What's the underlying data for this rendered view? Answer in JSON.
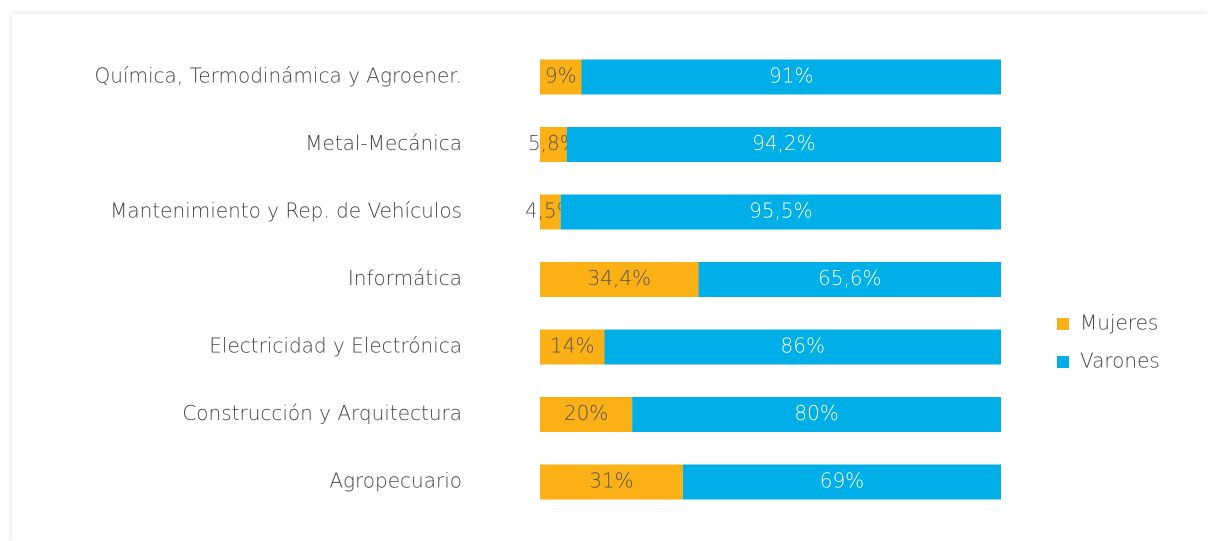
{
  "chart_data": {
    "type": "stacked_barh",
    "categories": [
      "Química, Termodinámica y Agroener.",
      "Metal-Mecánica",
      "Mantenimiento y Rep. de Vehículos",
      "Informática",
      "Electricidad y Electrónica",
      "Construcción y Arquitectura",
      "Agropecuario"
    ],
    "series": [
      {
        "name": "Mujeres",
        "color": "#fbb116",
        "values": [
          9,
          5.8,
          4.5,
          34.4,
          14,
          20,
          31
        ],
        "value_labels": [
          "9%",
          "5,8%",
          "4,5%",
          "34,4%",
          "14%",
          "20%",
          "31%"
        ]
      },
      {
        "name": "Varones",
        "color": "#00aee8",
        "values": [
          91,
          94.2,
          95.5,
          65.6,
          86,
          80,
          69
        ],
        "value_labels": [
          "91%",
          "94,2%",
          "95,5%",
          "65,6%",
          "86%",
          "80%",
          "69%"
        ]
      }
    ],
    "xlim": [
      0,
      100
    ],
    "legend": "right"
  }
}
